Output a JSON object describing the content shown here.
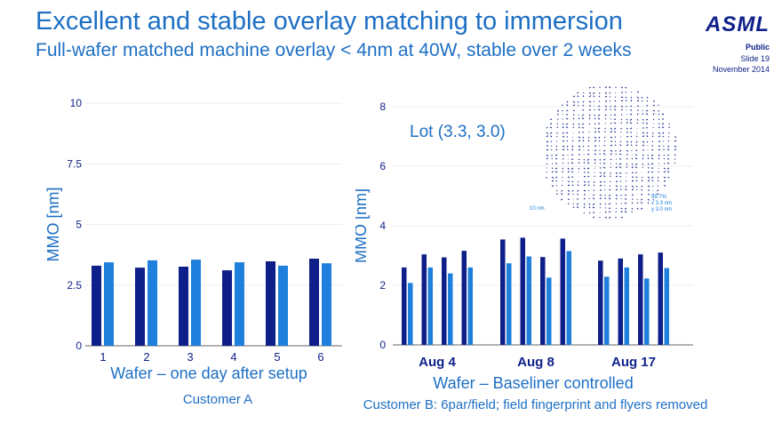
{
  "header": {
    "title": "Excellent and stable overlay matching to immersion",
    "subtitle": "Full-wafer matched machine overlay < 4nm at 40W, stable over 2 weeks",
    "logo": "ASML",
    "classification": "Public",
    "slide": "Slide 19",
    "date": "November 2014"
  },
  "colors": {
    "dark": "#0f1f8a",
    "light": "#1e7fdc",
    "text": "#1d6fc4",
    "navy": "#10228a"
  },
  "chart_data": [
    {
      "type": "bar",
      "ylabel": "MMO [nm]",
      "xlabel": "Wafer – one day after setup",
      "caption": "Customer A",
      "ylim": [
        0,
        10
      ],
      "yticks": [
        "0",
        "2.5",
        "5",
        "7.5",
        "10"
      ],
      "ytick_values": [
        0,
        2.5,
        5,
        7.5,
        10
      ],
      "grid": true,
      "categories": [
        "1",
        "2",
        "3",
        "4",
        "5",
        "6"
      ],
      "series": [
        {
          "values": [
            3.3,
            3.22,
            3.26,
            3.11,
            3.48,
            3.59
          ]
        },
        {
          "values": [
            3.44,
            3.52,
            3.55,
            3.44,
            3.3,
            3.4
          ]
        }
      ]
    },
    {
      "type": "bar",
      "ylabel": "MMO [nm]",
      "xlabel": "Wafer – Baseliner controlled",
      "caption": "Customer B: 6par/field; field fingerprint and flyers removed",
      "ylim": [
        0,
        8
      ],
      "yticks": [
        "0",
        "2",
        "4",
        "6",
        "8"
      ],
      "ytick_values": [
        0,
        2,
        4,
        6,
        8
      ],
      "grid": true,
      "groups": [
        "Aug 4",
        "Aug 8",
        "Aug 17"
      ],
      "series": [
        {
          "values": [
            [
              2.6,
              3.04,
              2.94,
              3.16
            ],
            [
              3.54,
              3.6,
              2.95,
              3.57
            ],
            [
              2.83,
              2.9,
              3.04,
              3.1
            ]
          ]
        },
        {
          "values": [
            [
              2.08,
              2.6,
              2.4,
              2.6
            ],
            [
              2.74,
              2.97,
              2.26,
              3.15
            ],
            [
              2.29,
              2.6,
              2.23,
              2.58
            ]
          ]
        }
      ],
      "annotation": "Lot (3.3, 3.0)",
      "inset": {
        "scale": "10 nm",
        "pct": "99.7%",
        "x": "x   3.3 nm",
        "y": "y   3.0 nm"
      }
    }
  ]
}
